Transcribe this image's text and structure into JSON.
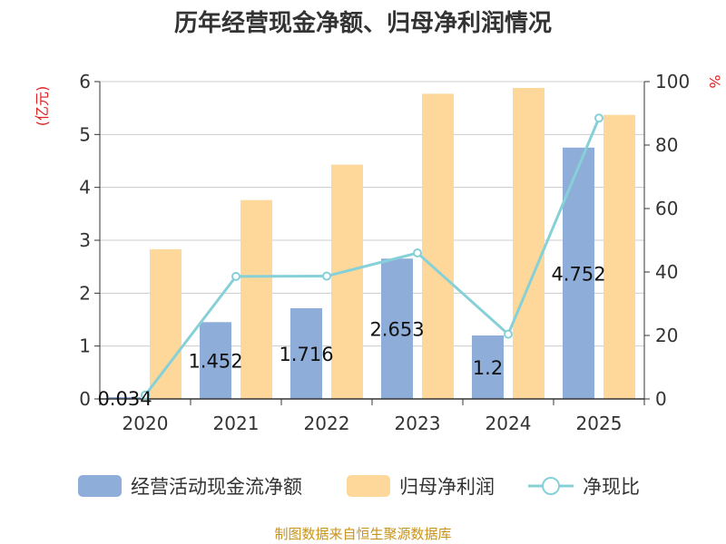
{
  "chart_data": {
    "type": "bar",
    "title": "历年经营现金净额、归母净利润情况",
    "categories": [
      "2020",
      "2021",
      "2022",
      "2023",
      "2024",
      "2025"
    ],
    "left_axis": {
      "unit": "(亿元)",
      "ylim": [
        0,
        6
      ],
      "ticks": [
        0,
        1,
        2,
        3,
        4,
        5,
        6
      ]
    },
    "right_axis": {
      "unit": "%",
      "ylim": [
        0,
        100
      ],
      "ticks": [
        0,
        20,
        40,
        60,
        80,
        100
      ]
    },
    "series": [
      {
        "name": "经营活动现金流净额",
        "type": "bar",
        "axis": "left",
        "color": "#8eadd9",
        "values": [
          0.034,
          1.452,
          1.716,
          2.653,
          1.2,
          4.752
        ],
        "labels": [
          "0.034",
          "1.452",
          "1.716",
          "2.653",
          "1.2",
          "4.752"
        ]
      },
      {
        "name": "归母净利润",
        "type": "bar",
        "axis": "left",
        "color": "#fdd89a",
        "values": [
          2.83,
          3.76,
          4.43,
          5.77,
          5.88,
          5.37
        ]
      },
      {
        "name": "净现比",
        "type": "line",
        "axis": "right",
        "color": "#86d0d8",
        "values": [
          1.2,
          38.6,
          38.7,
          46.0,
          20.4,
          88.5
        ]
      }
    ],
    "grid": true,
    "legend": "bottom",
    "source": "制图数据来自恒生聚源数据库"
  }
}
